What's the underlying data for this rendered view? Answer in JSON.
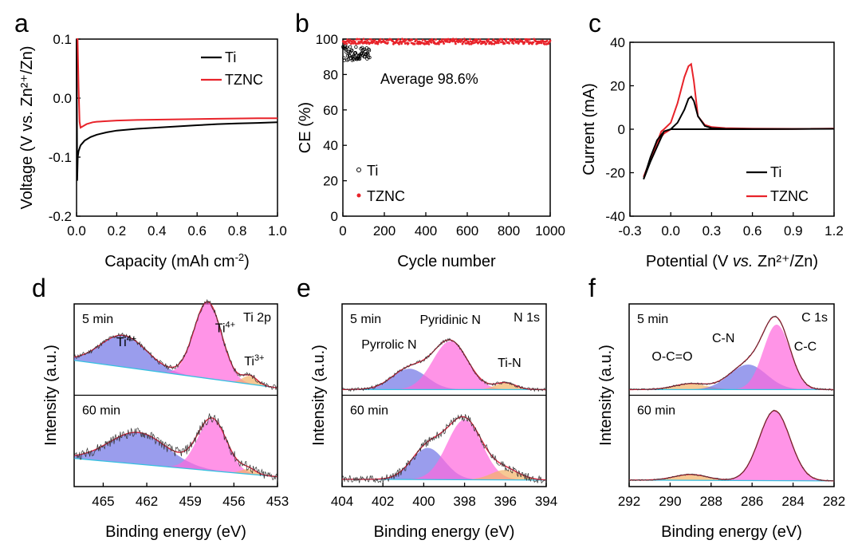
{
  "colors": {
    "ti": "#000000",
    "tznc": "#e8232a",
    "pink": "#ff66dd",
    "blue": "#6f73e6",
    "orange": "#f2b266",
    "cyan": "#36c0e0",
    "envelope": "#d4203a"
  },
  "chart_data": [
    {
      "id": "a",
      "panel_label": "a",
      "type": "line",
      "xlabel_main": "Capacity (mAh cm",
      "xlabel_sup": "-2",
      "xlabel_end": ")",
      "ylabel": "Voltage (V vs. Zn²⁺/Zn)",
      "xlim": [
        0,
        1.0
      ],
      "ylim": [
        -0.2,
        0.1
      ],
      "xticks": [
        0.0,
        0.2,
        0.4,
        0.6,
        0.8,
        1.0
      ],
      "xtick_labels": [
        "0.0",
        "0.2",
        "0.4",
        "0.6",
        "0.8",
        "1.0"
      ],
      "yticks": [
        -0.2,
        -0.1,
        0.0,
        0.1
      ],
      "ytick_labels": [
        "-0.2",
        "-0.1",
        "0.0",
        "0.1"
      ],
      "series": [
        {
          "name": "Ti",
          "color": "ti",
          "x": [
            0,
            0.003,
            0.006,
            0.01,
            0.02,
            0.04,
            0.07,
            0.1,
            0.15,
            0.2,
            0.3,
            0.4,
            0.5,
            0.6,
            0.7,
            0.8,
            0.9,
            1.0
          ],
          "y": [
            0.1,
            -0.14,
            -0.1,
            -0.09,
            -0.08,
            -0.072,
            -0.066,
            -0.062,
            -0.058,
            -0.055,
            -0.052,
            -0.05,
            -0.048,
            -0.046,
            -0.044,
            -0.043,
            -0.042,
            -0.041
          ]
        },
        {
          "name": "TZNC",
          "color": "tznc",
          "x": [
            0,
            0.005,
            0.01,
            0.015,
            0.02,
            0.03,
            0.05,
            0.08,
            0.1,
            0.2,
            0.3,
            0.5,
            0.7,
            0.9,
            1.0
          ],
          "y": [
            0.1,
            0.1,
            0.02,
            -0.04,
            -0.05,
            -0.048,
            -0.044,
            -0.041,
            -0.04,
            -0.038,
            -0.037,
            -0.036,
            -0.035,
            -0.034,
            -0.034
          ]
        }
      ],
      "legend": [
        "Ti",
        "TZNC"
      ]
    },
    {
      "id": "b",
      "panel_label": "b",
      "type": "scatter",
      "xlabel": "Cycle number",
      "ylabel": "CE (%)",
      "xlim": [
        0,
        1000
      ],
      "ylim": [
        0,
        100
      ],
      "xticks": [
        0,
        200,
        400,
        600,
        800,
        1000
      ],
      "xtick_labels": [
        "0",
        "200",
        "400",
        "600",
        "800",
        "1000"
      ],
      "yticks": [
        0,
        20,
        40,
        60,
        80,
        100
      ],
      "ytick_labels": [
        "0",
        "20",
        "40",
        "60",
        "80",
        "100"
      ],
      "annotation": "Average 98.6%",
      "series": [
        {
          "name": "Ti",
          "color": "ti",
          "cycles": [
            1,
            130
          ],
          "mean": 92,
          "spread": 4
        },
        {
          "name": "TZNC",
          "color": "tznc",
          "cycles": [
            1,
            1000
          ],
          "mean": 98.6,
          "spread": 1.5
        }
      ],
      "legend": [
        "Ti",
        "TZNC"
      ]
    },
    {
      "id": "c",
      "panel_label": "c",
      "type": "line",
      "xlabel_main": "Potential (V ",
      "xlabel_it": "vs.",
      "xlabel_end": " Zn²⁺/Zn)",
      "ylabel": "Current (mA)",
      "xlim": [
        -0.3,
        1.2
      ],
      "ylim": [
        -40,
        40
      ],
      "xticks": [
        -0.3,
        0.0,
        0.3,
        0.6,
        0.9,
        1.2
      ],
      "xtick_labels": [
        "-0.3",
        "0.0",
        "0.3",
        "0.6",
        "0.9",
        "1.2"
      ],
      "yticks": [
        -40,
        -20,
        0,
        20,
        40
      ],
      "ytick_labels": [
        "-40",
        "-20",
        "0",
        "20",
        "40"
      ],
      "series": [
        {
          "name": "Ti",
          "color": "ti",
          "x": [
            -0.2,
            -0.15,
            -0.1,
            -0.05,
            0.0,
            0.05,
            0.1,
            0.13,
            0.15,
            0.17,
            0.2,
            0.25,
            0.3,
            0.4,
            0.6,
            0.9,
            1.2,
            0.9,
            0.5,
            0.2,
            0.0,
            -0.05,
            -0.1,
            -0.15,
            -0.2
          ],
          "y": [
            -23,
            -15,
            -8,
            -1,
            0,
            3,
            9,
            14,
            15,
            13,
            6,
            1.5,
            0.5,
            0.2,
            0.1,
            0.1,
            0.2,
            0.1,
            0,
            0,
            0,
            -1,
            -5,
            -13,
            -23
          ]
        },
        {
          "name": "TZNC",
          "color": "tznc",
          "x": [
            -0.2,
            -0.15,
            -0.1,
            -0.07,
            -0.05,
            0.0,
            0.05,
            0.1,
            0.13,
            0.15,
            0.17,
            0.2,
            0.25,
            0.3,
            0.4,
            0.6,
            0.9,
            1.2,
            0.9,
            0.5,
            0.2,
            0.0,
            -0.05,
            -0.1,
            -0.15,
            -0.2
          ],
          "y": [
            -22,
            -14,
            -6,
            -1,
            0,
            3,
            12,
            24,
            29,
            30,
            22,
            6,
            2,
            1,
            0.5,
            0.3,
            0.2,
            0.3,
            0.1,
            0,
            0,
            0,
            -2,
            -6,
            -14,
            -22
          ]
        }
      ],
      "legend": [
        "Ti",
        "TZNC"
      ]
    },
    {
      "id": "d",
      "panel_label": "d",
      "type": "area",
      "xlabel": "Binding energy (eV)",
      "ylabel": "Intensity (a.u.)",
      "xlim": [
        467,
        453
      ],
      "xticks": [
        465,
        462,
        459,
        456,
        453
      ],
      "xtick_labels": [
        "465",
        "462",
        "459",
        "456",
        "453"
      ],
      "element": "Ti 2p",
      "spectra": [
        {
          "label": "5 min",
          "peaks": [
            {
              "name": "Ti⁴⁺",
              "center": 463.6,
              "height": 0.38,
              "width": 1.6,
              "color": "blue"
            },
            {
              "name": "Ti⁴⁺",
              "center": 457.8,
              "height": 0.92,
              "width": 0.95,
              "color": "pink"
            },
            {
              "name": "Ti³⁺",
              "center": 454.9,
              "height": 0.1,
              "width": 0.5,
              "color": "orange"
            }
          ],
          "peak_labels": [
            {
              "text": "Ti⁴⁺",
              "x": 463.4,
              "y": 0.55
            },
            {
              "text": "Ti⁴⁺",
              "x": 456.6,
              "y": 0.72
            },
            {
              "text": "Ti³⁺",
              "x": 454.6,
              "y": 0.32
            }
          ],
          "baseline": [
            0.38,
            0.05
          ],
          "noise": 0.03
        },
        {
          "label": "60 min",
          "peaks": [
            {
              "name": "Ti⁴⁺",
              "center": 462.6,
              "height": 0.38,
              "width": 2.0,
              "color": "blue"
            },
            {
              "name": "Ti⁴⁺",
              "center": 457.5,
              "height": 0.62,
              "width": 1.0,
              "color": "pink"
            },
            {
              "name": "Ti³⁺",
              "center": 455.0,
              "height": 0.06,
              "width": 0.5,
              "color": "orange"
            }
          ],
          "peak_labels": [],
          "baseline": [
            0.3,
            0.08
          ],
          "noise": 0.06
        }
      ]
    },
    {
      "id": "e",
      "panel_label": "e",
      "type": "area",
      "xlabel": "Binding energy (eV)",
      "ylabel": "Intensity (a.u.)",
      "xlim": [
        404,
        394
      ],
      "xticks": [
        404,
        402,
        400,
        398,
        396,
        394
      ],
      "xtick_labels": [
        "404",
        "402",
        "400",
        "398",
        "396",
        "394"
      ],
      "element": "N 1s",
      "spectra": [
        {
          "label": "5 min",
          "peaks": [
            {
              "name": "Pyrrolic N",
              "center": 400.7,
              "height": 0.25,
              "width": 0.85,
              "color": "blue"
            },
            {
              "name": "Pyridinic N",
              "center": 398.7,
              "height": 0.58,
              "width": 0.85,
              "color": "pink"
            },
            {
              "name": "Ti-N",
              "center": 396.0,
              "height": 0.08,
              "width": 0.5,
              "color": "orange"
            }
          ],
          "peak_labels": [
            {
              "text": "Pyrrolic N",
              "x": 401.7,
              "y": 0.52
            },
            {
              "text": "Pyridinic N",
              "x": 398.7,
              "y": 0.82
            },
            {
              "text": "Ti-N",
              "x": 395.8,
              "y": 0.3
            }
          ],
          "baseline": [
            0.03,
            0.03
          ],
          "noise": 0.02
        },
        {
          "label": "60 min",
          "peaks": [
            {
              "name": "Pyrrolic N",
              "center": 399.8,
              "height": 0.38,
              "width": 0.8,
              "color": "blue"
            },
            {
              "name": "Pyridinic N",
              "center": 398.0,
              "height": 0.72,
              "width": 0.85,
              "color": "pink"
            },
            {
              "name": "Ti-N",
              "center": 396.0,
              "height": 0.12,
              "width": 0.7,
              "color": "orange"
            }
          ],
          "peak_labels": [],
          "baseline": [
            0.05,
            0.04
          ],
          "noise": 0.05
        }
      ]
    },
    {
      "id": "f",
      "panel_label": "f",
      "type": "area",
      "xlabel": "Binding energy (eV)",
      "ylabel": "Intensity (a.u.)",
      "xlim": [
        292,
        282
      ],
      "xticks": [
        292,
        290,
        288,
        286,
        284,
        282
      ],
      "xtick_labels": [
        "292",
        "290",
        "288",
        "286",
        "284",
        "282"
      ],
      "element": "C 1s",
      "spectra": [
        {
          "label": "5 min",
          "peaks": [
            {
              "name": "O-C=O",
              "center": 289.0,
              "height": 0.07,
              "width": 0.8,
              "color": "orange"
            },
            {
              "name": "C-N",
              "center": 286.2,
              "height": 0.3,
              "width": 0.9,
              "color": "blue"
            },
            {
              "name": "C-C",
              "center": 284.8,
              "height": 0.78,
              "width": 0.65,
              "color": "pink"
            }
          ],
          "peak_labels": [
            {
              "text": "O-C=O",
              "x": 289.9,
              "y": 0.38
            },
            {
              "text": "C-N",
              "x": 287.4,
              "y": 0.6
            },
            {
              "text": "C-C",
              "x": 283.4,
              "y": 0.5
            }
          ],
          "baseline": [
            0.03,
            0.03
          ],
          "noise": 0.01
        },
        {
          "label": "60 min",
          "peaks": [
            {
              "name": "O-C=O",
              "center": 289.0,
              "height": 0.07,
              "width": 0.8,
              "color": "orange"
            },
            {
              "name": "C-C",
              "center": 284.9,
              "height": 0.84,
              "width": 0.75,
              "color": "pink"
            }
          ],
          "peak_labels": [],
          "baseline": [
            0.04,
            0.03
          ],
          "noise": 0.008
        }
      ]
    }
  ]
}
